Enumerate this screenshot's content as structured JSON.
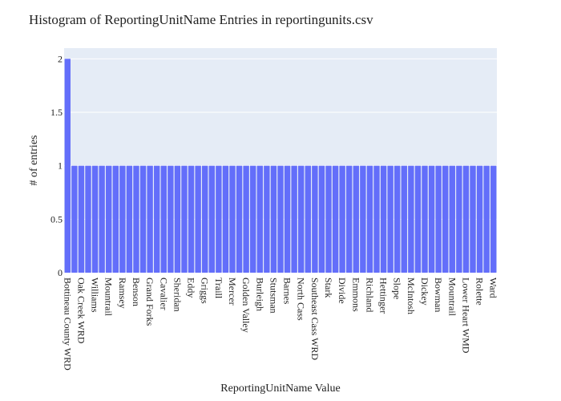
{
  "chart_data": {
    "type": "bar",
    "title": "Histogram of ReportingUnitName Entries in reportingunits.csv",
    "xlabel": "ReportingUnitName Value",
    "ylabel": "# of entries",
    "ylim": [
      0,
      2.1
    ],
    "yticks": [
      0,
      0.5,
      1,
      1.5,
      2
    ],
    "ytick_labels": [
      "0",
      "0.5",
      "1",
      "1.5",
      "2"
    ],
    "grid": true,
    "bar_color": "#636efa",
    "plot_background": "#e5ecf6",
    "categories": [
      "Bottineau County WRD",
      "",
      "Oak Creek WRD",
      "",
      "Williams",
      "",
      "Mountrail",
      "",
      "Ramsey",
      "",
      "Benson",
      "",
      "Grand Forks",
      "",
      "Cavalier",
      "",
      "Sheridan",
      "",
      "Eddy",
      "",
      "Griggs",
      "",
      "Traill",
      "",
      "Mercer",
      "",
      "Golden Valley",
      "",
      "Burleigh",
      "",
      "Stutsman",
      "",
      "Barnes",
      "",
      "North Cass",
      "",
      "Southeast Cass WRD",
      "",
      "Stark",
      "",
      "Divide",
      "",
      "Emmons",
      "",
      "Richland",
      "",
      "Hettinger",
      "",
      "Slope",
      "",
      "McIntosh",
      "",
      "Dickey",
      "",
      "Bowman",
      "",
      "Mountrail",
      "",
      "Lower Heart WMD",
      "",
      "Rolette",
      "",
      "Ward"
    ],
    "values": [
      2,
      1,
      1,
      1,
      1,
      1,
      1,
      1,
      1,
      1,
      1,
      1,
      1,
      1,
      1,
      1,
      1,
      1,
      1,
      1,
      1,
      1,
      1,
      1,
      1,
      1,
      1,
      1,
      1,
      1,
      1,
      1,
      1,
      1,
      1,
      1,
      1,
      1,
      1,
      1,
      1,
      1,
      1,
      1,
      1,
      1,
      1,
      1,
      1,
      1,
      1,
      1,
      1,
      1,
      1,
      1,
      1,
      1,
      1,
      1,
      1,
      1,
      1
    ]
  }
}
